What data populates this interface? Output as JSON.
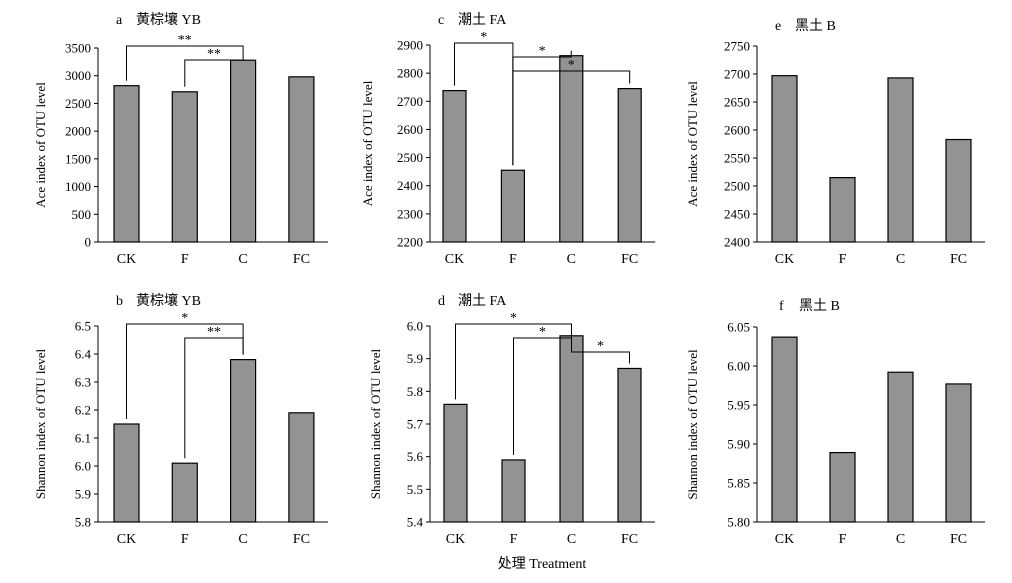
{
  "figure": {
    "x_title": "处理 Treatment"
  },
  "chart_data": [
    {
      "type": "bar",
      "panel": "a",
      "title": "黄棕壤 YB",
      "categories": [
        "CK",
        "F",
        "C",
        "FC"
      ],
      "values": [
        2820,
        2710,
        3280,
        2980
      ],
      "ylabel": "Ace index of OTU level",
      "ylim": [
        0,
        3500
      ],
      "yticks": [
        0,
        500,
        1000,
        1500,
        2000,
        2500,
        3000,
        3500
      ],
      "bar_color": "#939393",
      "significance": [
        {
          "from": "CK",
          "to": "C",
          "label": "**"
        },
        {
          "from": "F",
          "to": "C",
          "label": "**"
        }
      ]
    },
    {
      "type": "bar",
      "panel": "b",
      "title": "黄棕壤 YB",
      "categories": [
        "CK",
        "F",
        "C",
        "FC"
      ],
      "values": [
        6.15,
        6.01,
        6.38,
        6.19
      ],
      "ylabel": "Shannon index of OTU level",
      "ylim": [
        5.8,
        6.5
      ],
      "yticks": [
        "5.8",
        "5.9",
        "6.0",
        "6.1",
        "6.2",
        "6.3",
        "6.4",
        "6.5"
      ],
      "bar_color": "#939393",
      "significance": [
        {
          "from": "CK",
          "to": "C",
          "label": "*"
        },
        {
          "from": "F",
          "to": "C",
          "label": "**"
        }
      ]
    },
    {
      "type": "bar",
      "panel": "c",
      "title": "潮土 FA",
      "categories": [
        "CK",
        "F",
        "C",
        "FC"
      ],
      "values": [
        2738,
        2455,
        2862,
        2745
      ],
      "ylabel": "Ace index of OTU level",
      "ylim": [
        2200,
        2900
      ],
      "yticks": [
        2200,
        2300,
        2400,
        2500,
        2600,
        2700,
        2800,
        2900
      ],
      "bar_color": "#939393",
      "significance": [
        {
          "from": "CK",
          "to": "F",
          "label": "*"
        },
        {
          "from": "F",
          "to": "C",
          "label": "*"
        },
        {
          "from": "F",
          "to": "FC",
          "label": "*"
        }
      ]
    },
    {
      "type": "bar",
      "panel": "d",
      "title": "潮土 FA",
      "categories": [
        "CK",
        "F",
        "C",
        "FC"
      ],
      "values": [
        5.76,
        5.59,
        5.97,
        5.87
      ],
      "ylabel": "Shannon index of OTU level",
      "ylim": [
        5.4,
        6.0
      ],
      "yticks": [
        "5.4",
        "5.5",
        "5.6",
        "5.7",
        "5.8",
        "5.9",
        "6.0"
      ],
      "bar_color": "#939393",
      "significance": [
        {
          "from": "CK",
          "to": "C",
          "label": "*"
        },
        {
          "from": "F",
          "to": "C",
          "label": "*"
        },
        {
          "from": "C",
          "to": "FC",
          "label": "*"
        }
      ]
    },
    {
      "type": "bar",
      "panel": "e",
      "title": "黑土 B",
      "categories": [
        "CK",
        "F",
        "C",
        "FC"
      ],
      "values": [
        2697,
        2515,
        2693,
        2583
      ],
      "ylabel": "Ace index of OTU level",
      "ylim": [
        2400,
        2750
      ],
      "yticks": [
        2400,
        2450,
        2500,
        2550,
        2600,
        2650,
        2700,
        2750
      ],
      "bar_color": "#939393",
      "significance": []
    },
    {
      "type": "bar",
      "panel": "f",
      "title": "黑土 B",
      "categories": [
        "CK",
        "F",
        "C",
        "FC"
      ],
      "values": [
        6.037,
        5.889,
        5.992,
        5.977
      ],
      "ylabel": "Shannon index of OTU level",
      "ylim": [
        5.8,
        6.05
      ],
      "yticks": [
        "5.80",
        "5.85",
        "5.90",
        "5.95",
        "6.00",
        "6.05"
      ],
      "bar_color": "#939393",
      "significance": []
    }
  ]
}
